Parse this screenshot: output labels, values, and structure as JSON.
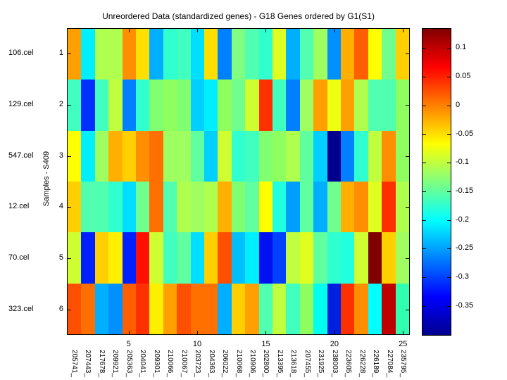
{
  "chart_data": {
    "type": "heatmap",
    "title": "Unreordered Data (standardized genes) - G18 Genes ordered by G1(S1)",
    "ylabel": "Samples - S409",
    "rows": [
      "106.cel",
      "129.cel",
      "547.cel",
      "12.cel",
      "70.cel",
      "323.cel"
    ],
    "row_tick_labels": [
      "1",
      "2",
      "3",
      "4",
      "5",
      "6"
    ],
    "columns": [
      "205741_",
      "207443_",
      "217678_",
      "209921_",
      "205363_",
      "204041_",
      "209301_",
      "210066_",
      "210067_",
      "203723_",
      "204363_",
      "206022_",
      "210068_",
      "210906_",
      "202800_",
      "213395_",
      "213618_",
      "207455_",
      "231925_",
      "238003_",
      "223605_",
      "226228_",
      "226189_",
      "227084_",
      "235795_"
    ],
    "x_numeric_ticks": [
      5,
      10,
      15,
      20,
      25
    ],
    "colormap": "jet",
    "grid_on": false,
    "cell_colors": [
      [
        "#FF9F00",
        "#00EFFF",
        "#AFFF4F",
        "#AFFF4F",
        "#FF8F00",
        "#FFDF00",
        "#00AFFF",
        "#30FFCF",
        "#40FFBF",
        "#00DFFF",
        "#FFDF00",
        "#0080FF",
        "#80FF80",
        "#50FFAF",
        "#2FFFCF",
        "#DFFF20",
        "#00AFFF",
        "#50FFAF",
        "#9FFF60",
        "#0090FF",
        "#FFAF00",
        "#FF5F00",
        "#FFFF00",
        "#70FF8F",
        "#FFCF00"
      ],
      [
        "#40FFBF",
        "#0030FF",
        "#40FFBF",
        "#BFFF40",
        "#0080FF",
        "#30FFCF",
        "#80FF70",
        "#8FFF60",
        "#80FF70",
        "#00CFFF",
        "#00EFFF",
        "#8FFF60",
        "#70FF8F",
        "#CFFF30",
        "#FF3000",
        "#40FFBF",
        "#0080FF",
        "#9FFF60",
        "#FF9F00",
        "#EFFF10",
        "#FF9F00",
        "#AFFF4F",
        "#50FFAF",
        "#50FFAF",
        "#8FFF60"
      ],
      [
        "#FFFF00",
        "#00EFFF",
        "#9FFF60",
        "#FFAF00",
        "#FFCF00",
        "#FF8F00",
        "#FF7000",
        "#9FFF60",
        "#9FFF60",
        "#60FF9F",
        "#00CFFF",
        "#CFFF30",
        "#30FFCF",
        "#40FFBF",
        "#80FF70",
        "#8FFF60",
        "#AFFF4F",
        "#60FF9F",
        "#00CFFF",
        "#00008F",
        "#0080FF",
        "#30FFCF",
        "#BFFF40",
        "#FF8F00",
        "#8FFF60"
      ],
      [
        "#FFCF00",
        "#50FFAF",
        "#50FFAF",
        "#30FFCF",
        "#00DFFF",
        "#70FF8F",
        "#FF7000",
        "#50FFAF",
        "#AFFF4F",
        "#9FFF60",
        "#AFFF4F",
        "#FFAF00",
        "#80FF70",
        "#60FF9F",
        "#FFFF00",
        "#20FFDF",
        "#009FFF",
        "#60FF9F",
        "#00AFFF",
        "#70FF8F",
        "#FFAF00",
        "#FF8F00",
        "#DFFF20",
        "#FF3000",
        "#AFFF4F"
      ],
      [
        "#CFFF30",
        "#0020FF",
        "#FFCF00",
        "#FFEF00",
        "#0020FF",
        "#FF1000",
        "#CFFF30",
        "#40FFBF",
        "#60FF9F",
        "#00DFFF",
        "#FFCF00",
        "#FF5000",
        "#00BFFF",
        "#00EFFF",
        "#0010EF",
        "#0040FF",
        "#BFFF40",
        "#DFFF20",
        "#60FF9F",
        "#30FFCF",
        "#20FFDF",
        "#CFFF30",
        "#800000",
        "#FFCF00",
        "#9FFF60"
      ],
      [
        "#FF4F00",
        "#FF6F00",
        "#00AFFF",
        "#0090FF",
        "#FF5F00",
        "#FF3000",
        "#FFEF00",
        "#FF9F00",
        "#FF4F00",
        "#FF7000",
        "#FF7000",
        "#00AFFF",
        "#FFCF00",
        "#FF9F00",
        "#50FFAF",
        "#BFFF40",
        "#40FFBF",
        "#8FFF60",
        "#00FFEF",
        "#0020DF",
        "#FF3000",
        "#FF8F00",
        "#00FFFF",
        "#BF0000",
        "#30FFAF"
      ]
    ],
    "colorbar": {
      "tick_labels": [
        "0.1",
        "0.05",
        "0",
        "-0.05",
        "-0.1",
        "-0.15",
        "-0.2",
        "-0.25",
        "-0.3",
        "-0.35"
      ],
      "tick_values": [
        0.1,
        0.05,
        0,
        -0.05,
        -0.1,
        -0.15,
        -0.2,
        -0.25,
        -0.3,
        -0.35
      ],
      "vmax": 0.135,
      "vmin": -0.402,
      "gradient_top_to_bottom": [
        {
          "color": "#800000",
          "pos": 0
        },
        {
          "color": "#FF0000",
          "pos": 12.5
        },
        {
          "color": "#FF8000",
          "pos": 25
        },
        {
          "color": "#FFFF00",
          "pos": 37.5
        },
        {
          "color": "#80FF80",
          "pos": 50
        },
        {
          "color": "#00FFFF",
          "pos": 62.5
        },
        {
          "color": "#0080FF",
          "pos": 75
        },
        {
          "color": "#0000FF",
          "pos": 87.5
        },
        {
          "color": "#00008F",
          "pos": 100
        }
      ]
    }
  }
}
